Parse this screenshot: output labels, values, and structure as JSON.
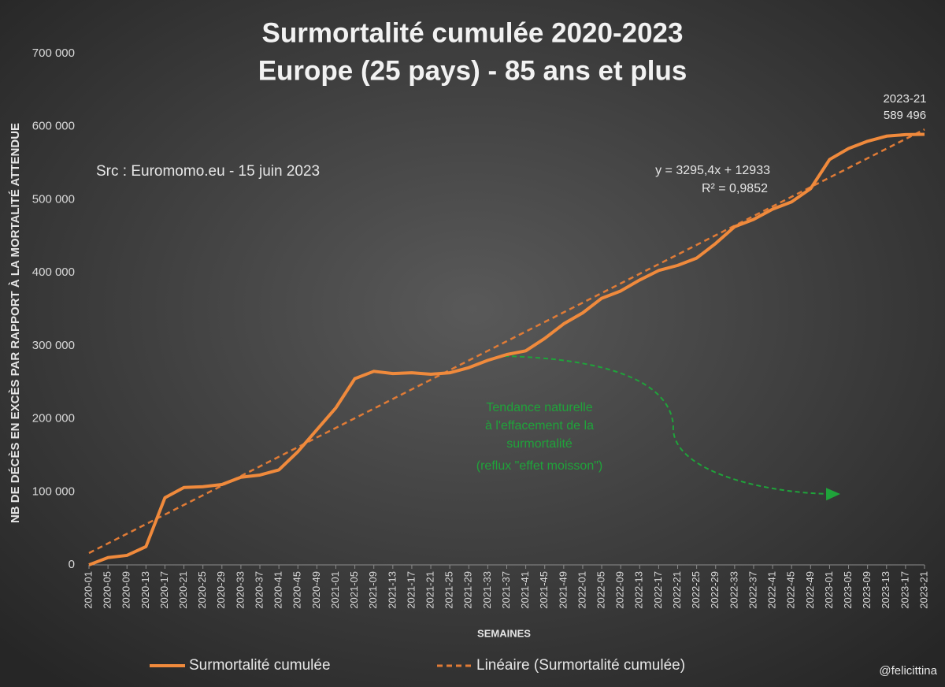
{
  "chart_data": {
    "type": "line",
    "title": "Surmortalité cumulée 2020-2023",
    "subtitle": "Europe (25 pays) - 85 ans et plus",
    "source": "Src : Euromomo.eu  - 15 juin 2023",
    "xlabel": "SEMAINES",
    "ylabel": "NB DE DÉCÈS EN EXCÈS PAR RAPPORT À LA MORTALITÉ ATTENDUE",
    "equation": "y = 3295,4x + 12933",
    "r_squared": "R² = 0,9852",
    "annotation": [
      "Tendance naturelle",
      "à l'effacement de la",
      "surmortalité",
      "(reflux \"effet moisson\")"
    ],
    "credit": "@felicittina",
    "categories": [
      "2020-01",
      "2020-05",
      "2020-09",
      "2020-13",
      "2020-17",
      "2020-21",
      "2020-25",
      "2020-29",
      "2020-33",
      "2020-37",
      "2020-41",
      "2020-45",
      "2020-49",
      "2021-01",
      "2021-05",
      "2021-09",
      "2021-13",
      "2021-17",
      "2021-21",
      "2021-25",
      "2021-29",
      "2021-33",
      "2021-37",
      "2021-41",
      "2021-45",
      "2021-49",
      "2022-01",
      "2022-05",
      "2022-09",
      "2022-13",
      "2022-17",
      "2022-21",
      "2022-25",
      "2022-29",
      "2022-33",
      "2022-37",
      "2022-41",
      "2022-45",
      "2022-49",
      "2023-01",
      "2023-05",
      "2023-09",
      "2023-13",
      "2023-17",
      "2023-21"
    ],
    "series": [
      {
        "name": "Surmortalité cumulée",
        "color": "#f08a3c",
        "style": "solid",
        "values": [
          0,
          10000,
          13000,
          25000,
          92000,
          106000,
          107000,
          110000,
          120000,
          123000,
          130000,
          155000,
          185000,
          215000,
          255000,
          265000,
          262000,
          263000,
          261000,
          263000,
          270000,
          280000,
          288000,
          293000,
          310000,
          330000,
          345000,
          365000,
          375000,
          390000,
          403000,
          410000,
          420000,
          440000,
          463000,
          473000,
          487000,
          497000,
          515000,
          555000,
          570000,
          580000,
          587000,
          589000,
          589496
        ],
        "value_labels": [
          null,
          null,
          null,
          null,
          null,
          null,
          null,
          null,
          null,
          null,
          null,
          null,
          null,
          null,
          null,
          null,
          null,
          null,
          null,
          null,
          null,
          null,
          null,
          null,
          null,
          null,
          null,
          null,
          null,
          null,
          null,
          null,
          null,
          null,
          null,
          null,
          null,
          null,
          null,
          null,
          null,
          null,
          null,
          null,
          "589 496"
        ]
      },
      {
        "name": "Linéaire (Surmortalité cumulée)",
        "color": "#e07b36",
        "style": "dashed",
        "values": [
          16228,
          29410,
          42592,
          55773,
          68955,
          82137,
          95318,
          108500,
          121682,
          134863,
          148045,
          161227,
          174409,
          187590,
          200772,
          213954,
          227135,
          240317,
          253499,
          266681,
          279862,
          293044,
          306226,
          319407,
          332589,
          345771,
          358952,
          372134,
          385316,
          398497,
          411679,
          424861,
          438043,
          451224,
          464406,
          477588,
          490769,
          503951,
          517133,
          530314,
          543496,
          556678,
          569859,
          583041,
          596223
        ]
      }
    ],
    "ylim": [
      0,
      700000
    ],
    "yticks": [
      0,
      {
        "value": 100000,
        "label": "100 000"
      },
      {
        "value": 200000,
        "label": "200 000"
      },
      {
        "value": 300000,
        "label": "300 000"
      },
      {
        "value": 400000,
        "label": "400 000"
      },
      {
        "value": 500000,
        "label": "500 000"
      },
      {
        "value": 600000,
        "label": "600 000"
      },
      {
        "value": 700000,
        "label": "700 000"
      }
    ],
    "grid": false
  }
}
